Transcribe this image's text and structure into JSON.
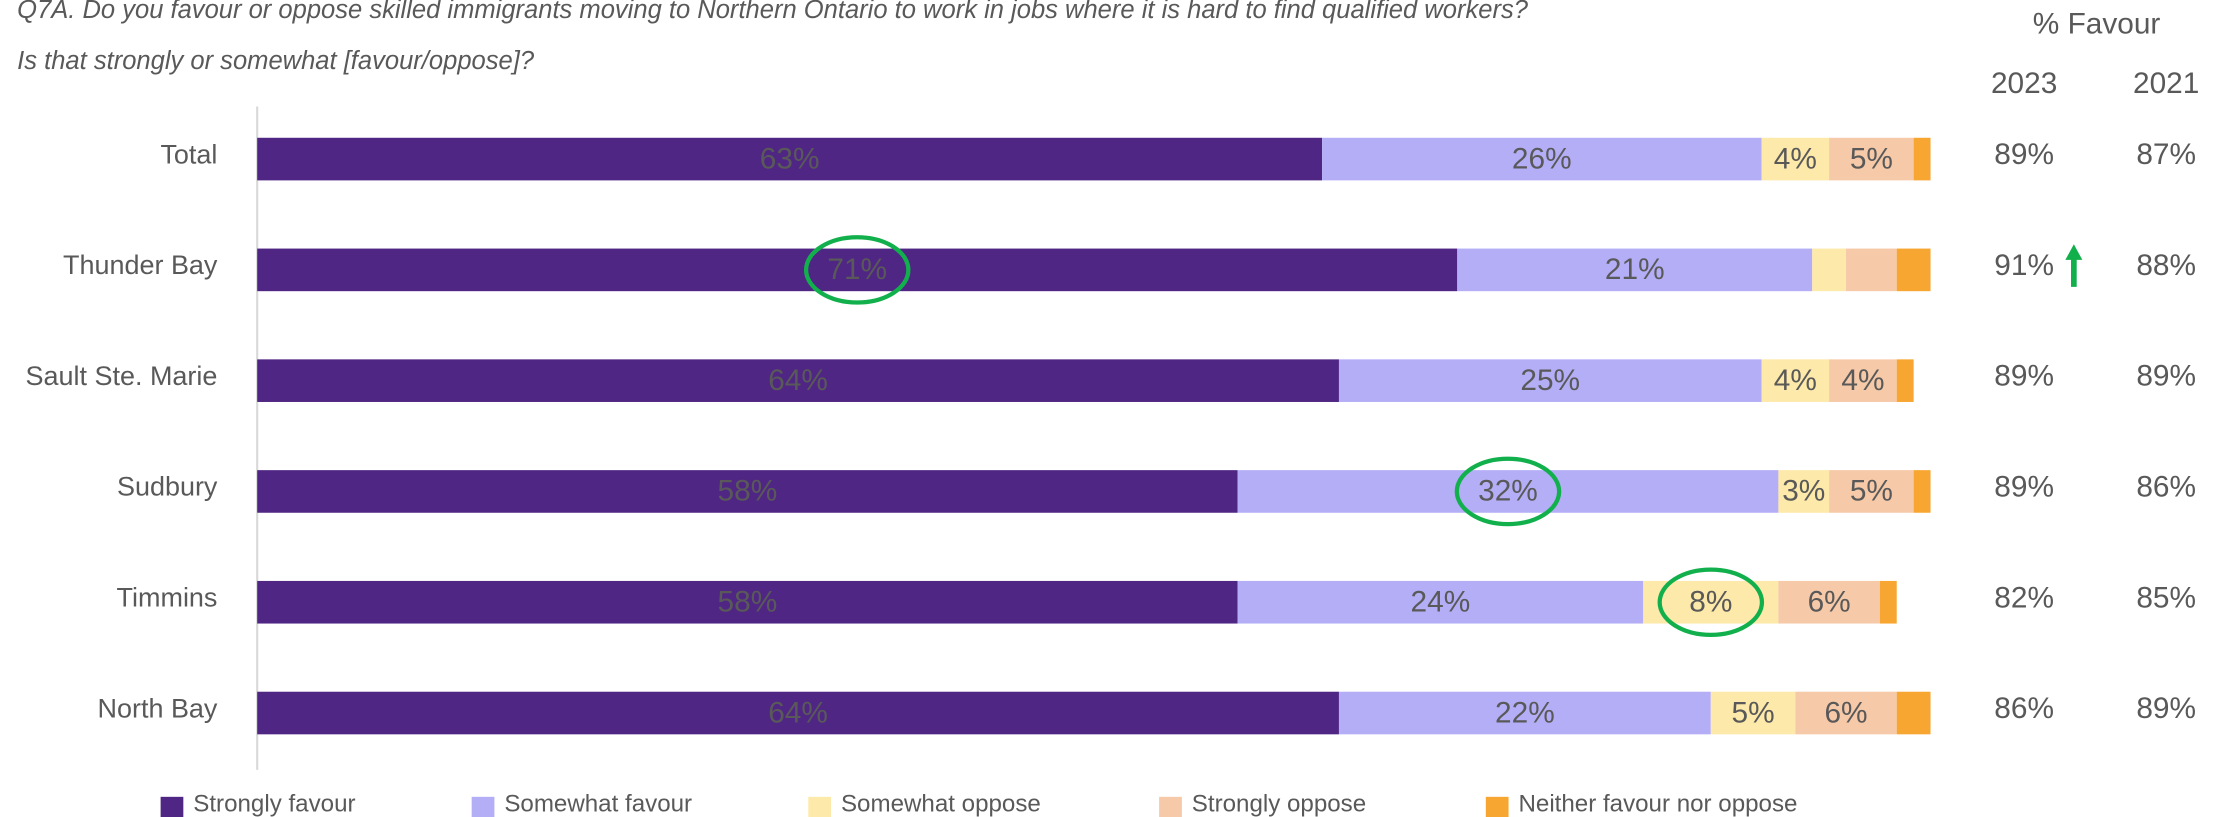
{
  "chart_data": {
    "type": "stacked-bar-horizontal",
    "title": "Q7A. Do you favour or oppose skilled immigrants moving to Northern Ontario to work in jobs where it is hard to find qualified workers?",
    "subtitle": "Is that strongly or somewhat [favour/oppose]?",
    "categories": [
      "Total",
      "Thunder Bay",
      "Sault Ste. Marie",
      "Sudbury",
      "Timmins",
      "North Bay"
    ],
    "xlim": [
      0,
      100
    ],
    "series": [
      {
        "name": "Strongly favour",
        "color": "#4f2683",
        "values": [
          63,
          71,
          64,
          58,
          58,
          64
        ],
        "value_labels": [
          "63%",
          "71%",
          "64%",
          "58%",
          "58%",
          "64%"
        ]
      },
      {
        "name": "Somewhat favour",
        "color": "#b4aef7",
        "values": [
          26,
          21,
          25,
          32,
          24,
          22
        ],
        "value_labels": [
          "26%",
          "21%",
          "25%",
          "32%",
          "24%",
          "22%"
        ]
      },
      {
        "name": "Somewhat oppose",
        "color": "#fde9a9",
        "values": [
          4,
          2,
          4,
          3,
          8,
          5
        ],
        "value_labels": [
          "4%",
          null,
          "4%",
          "3%",
          "8%",
          "5%"
        ]
      },
      {
        "name": "Strongly oppose",
        "color": "#f6c9a8",
        "values": [
          5,
          3,
          4,
          5,
          6,
          6
        ],
        "value_labels": [
          "5%",
          null,
          "4%",
          "5%",
          "6%",
          "6%"
        ]
      },
      {
        "name": "Neither favour nor oppose",
        "color": "#f7a631",
        "values": [
          1,
          2,
          1,
          1,
          1,
          2
        ],
        "value_labels": [
          null,
          null,
          null,
          null,
          null,
          null
        ]
      }
    ],
    "highlighted": [
      {
        "series": 0,
        "index": 1
      },
      {
        "series": 1,
        "index": 3
      },
      {
        "series": 2,
        "index": 4
      }
    ],
    "favour_table": {
      "header": "% Favour",
      "columns": [
        {
          "year": "2023",
          "values": [
            89,
            91,
            89,
            89,
            82,
            86
          ],
          "value_labels": [
            "89%",
            "91%",
            "89%",
            "89%",
            "82%",
            "86%"
          ],
          "trend_up": [
            false,
            true,
            false,
            false,
            false,
            false
          ]
        },
        {
          "year": "2021",
          "values": [
            87,
            88,
            89,
            86,
            85,
            89
          ],
          "value_labels": [
            "87%",
            "88%",
            "89%",
            "86%",
            "85%",
            "89%"
          ]
        }
      ]
    }
  }
}
